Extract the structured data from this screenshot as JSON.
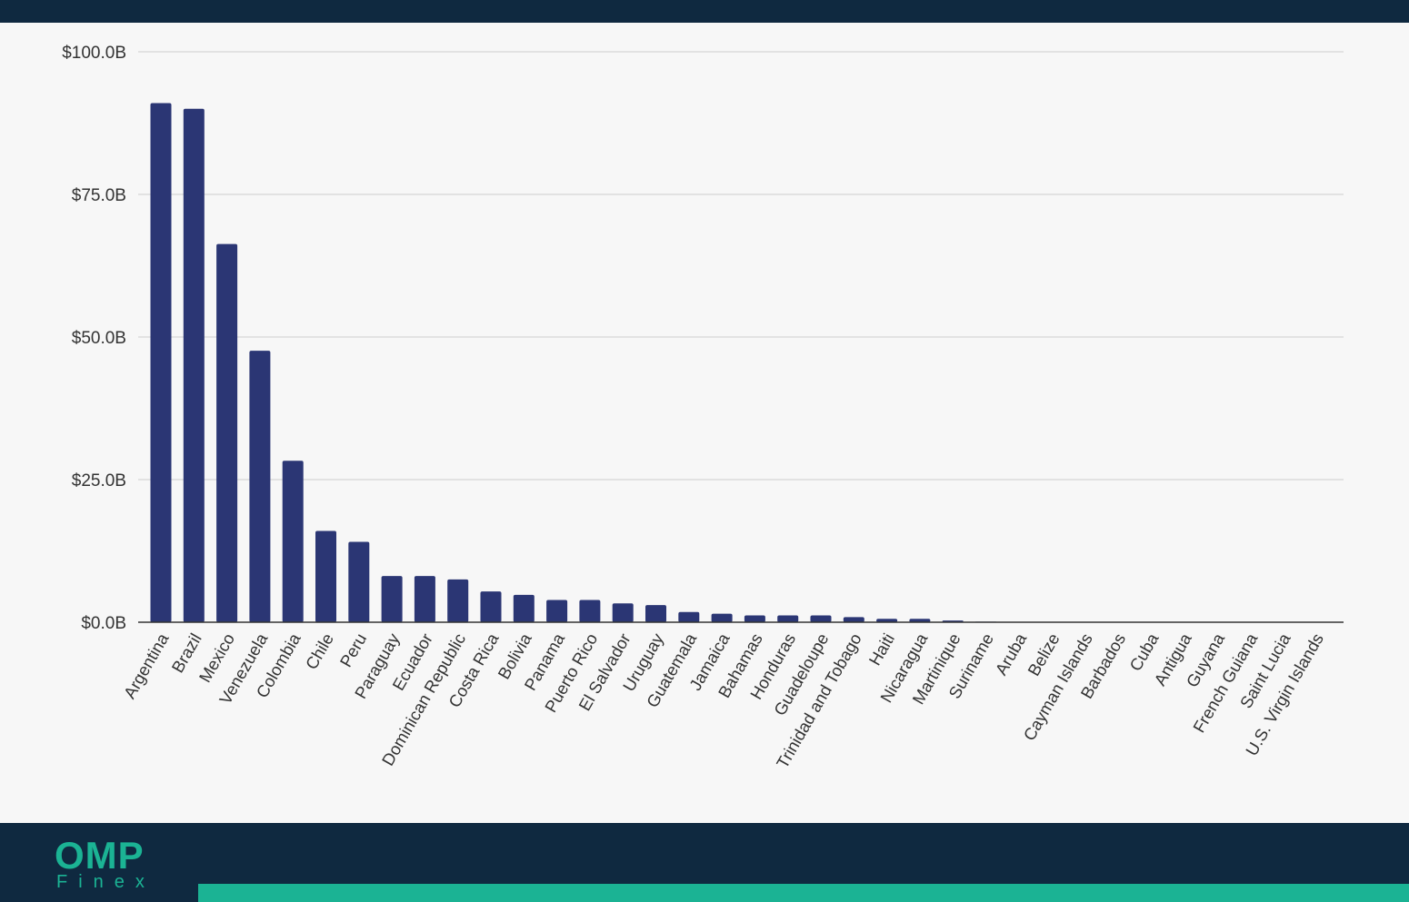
{
  "colors": {
    "background": "#0f2940",
    "panel": "#f7f7f7",
    "bar": "#2b3674",
    "accent": "#1bb394",
    "grid": "#dcdcdc",
    "text": "#333333"
  },
  "brand": {
    "logo_mark": "OMP",
    "logo_sub": "Finex"
  },
  "chart_data": {
    "type": "bar",
    "title": "",
    "xlabel": "",
    "ylabel": "",
    "ylim": [
      0,
      100
    ],
    "y_ticks": [
      0,
      25,
      50,
      75,
      100
    ],
    "y_tick_labels": [
      "$0.0B",
      "$25.0B",
      "$50.0B",
      "$75.0B",
      "$100.0B"
    ],
    "grid": true,
    "categories": [
      "Argentina",
      "Brazil",
      "Mexico",
      "Venezuela",
      "Colombia",
      "Chile",
      "Peru",
      "Paraguay",
      "Ecuador",
      "Dominican Republic",
      "Costa Rica",
      "Bolivia",
      "Panama",
      "Puerto Rico",
      "El Salvador",
      "Uruguay",
      "Guatemala",
      "Jamaica",
      "Bahamas",
      "Honduras",
      "Guadeloupe",
      "Trinidad and Tobago",
      "Haiti",
      "Nicaragua",
      "Martinique",
      "Suriname",
      "Aruba",
      "Belize",
      "Cayman Islands",
      "Barbados",
      "Cuba",
      "Antigua",
      "Guyana",
      "French Guiana",
      "Saint Lucia",
      "U.S. Virgin Islands"
    ],
    "values": [
      91,
      90,
      66.3,
      47.6,
      28.3,
      16,
      14.1,
      8.1,
      8.1,
      7.5,
      5.4,
      4.8,
      3.9,
      3.9,
      3.3,
      3,
      1.8,
      1.5,
      1.2,
      1.2,
      1.2,
      0.9,
      0.6,
      0.6,
      0.3,
      0.1,
      0.05,
      0.05,
      0.05,
      0.05,
      0.05,
      0.05,
      0.05,
      0.05,
      0.05,
      0.05
    ]
  }
}
